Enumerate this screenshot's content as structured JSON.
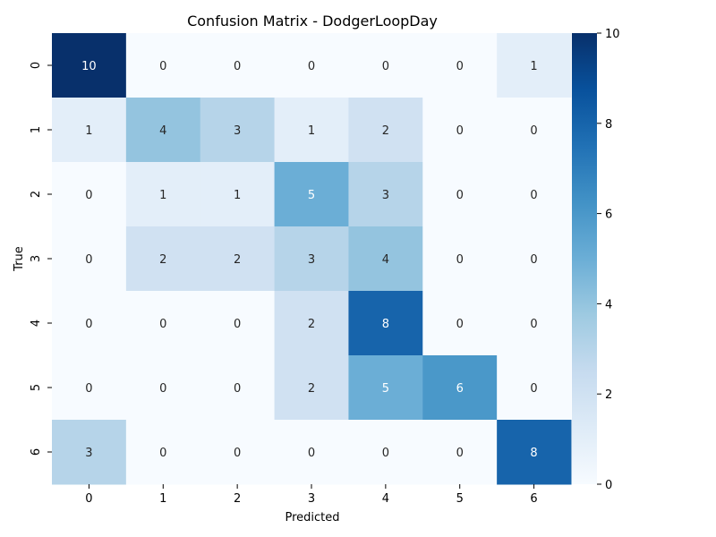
{
  "chart_data": {
    "type": "heatmap",
    "title": "Confusion Matrix - DodgerLoopDay",
    "xlabel": "Predicted",
    "ylabel": "True",
    "x_categories": [
      "0",
      "1",
      "2",
      "3",
      "4",
      "5",
      "6"
    ],
    "y_categories": [
      "0",
      "1",
      "2",
      "3",
      "4",
      "5",
      "6"
    ],
    "values": [
      [
        10,
        0,
        0,
        0,
        0,
        0,
        1
      ],
      [
        1,
        4,
        3,
        1,
        2,
        0,
        0
      ],
      [
        0,
        1,
        1,
        5,
        3,
        0,
        0
      ],
      [
        0,
        2,
        2,
        3,
        4,
        0,
        0
      ],
      [
        0,
        0,
        0,
        2,
        8,
        0,
        0
      ],
      [
        0,
        0,
        0,
        2,
        5,
        6,
        0
      ],
      [
        3,
        0,
        0,
        0,
        0,
        0,
        8
      ]
    ],
    "colorbar": {
      "range": [
        0,
        10
      ],
      "ticks": [
        "0",
        "2",
        "4",
        "6",
        "8",
        "10"
      ],
      "colormap": "Blues"
    },
    "grid": false,
    "legend": "colorbar-right"
  }
}
